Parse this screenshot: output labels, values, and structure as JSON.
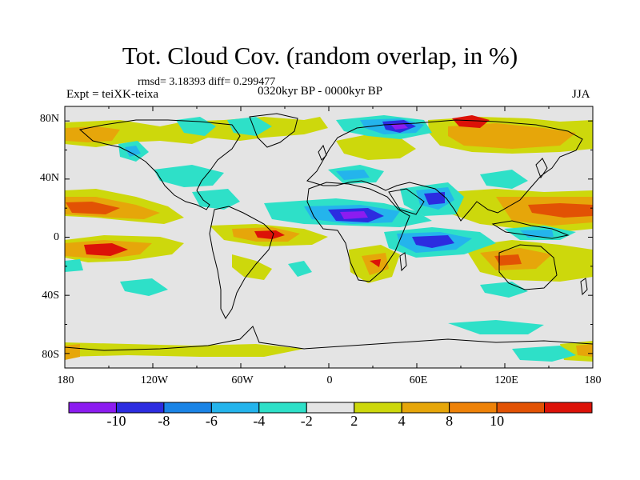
{
  "header": {
    "title": "Tot. Cloud Cov. (random overlap, in %)",
    "stats": "rmsd= 3.18393 diff= 0.299477",
    "experiment": "Expt = teiXK-teixa",
    "period": "0320kyr BP - 0000kyr BP",
    "season": "JJA"
  },
  "axes": {
    "y_ticks": [
      "80N",
      "40N",
      "0",
      "40S",
      "80S"
    ],
    "x_ticks": [
      "180",
      "120W",
      "60W",
      "0",
      "60E",
      "120E",
      "180"
    ]
  },
  "colorbar": {
    "colors": [
      "#8c1cf0",
      "#2c2ce0",
      "#1a84e6",
      "#24b4ec",
      "#2ee0c8",
      "#e4e4e4",
      "#cdd80c",
      "#e6a60a",
      "#ee8208",
      "#e25204",
      "#dc1208"
    ],
    "labels": [
      "-10",
      "-8",
      "-6",
      "-4",
      "-2",
      "2",
      "4",
      "8",
      "10"
    ]
  },
  "map": {
    "background": "#e4e4e4",
    "lon_range": [
      -180,
      180
    ],
    "lat_range": [
      -90,
      90
    ]
  }
}
